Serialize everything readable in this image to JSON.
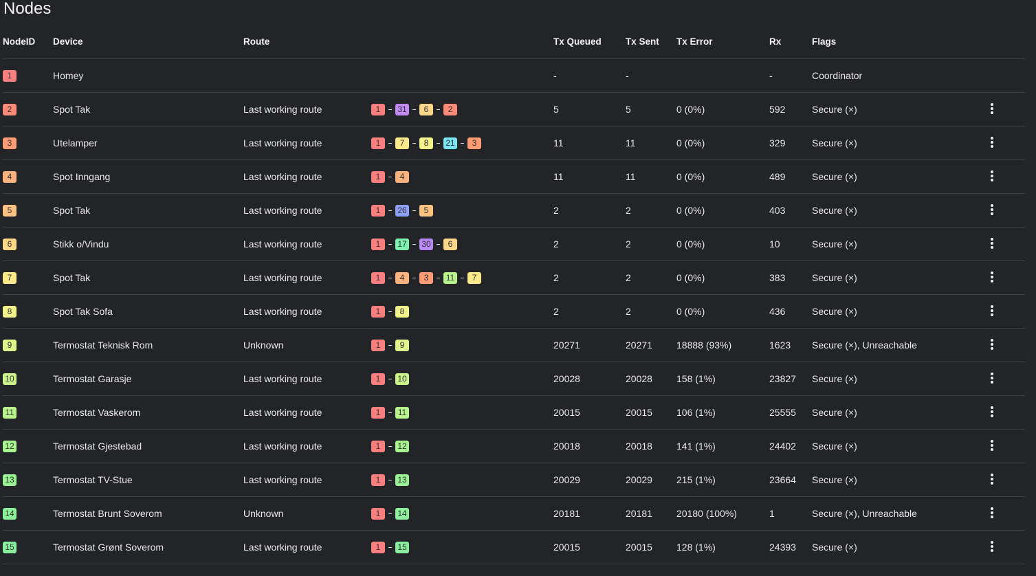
{
  "page": {
    "title": "Nodes"
  },
  "columns": {
    "node_id": "NodeID",
    "device": "Device",
    "route": "Route",
    "tx_queued": "Tx Queued",
    "tx_sent": "Tx Sent",
    "tx_error": "Tx Error",
    "rx": "Rx",
    "flags": "Flags"
  },
  "badge_colors": {
    "1": "#fa8080",
    "2": "#fb8a78",
    "3": "#fc9b74",
    "4": "#fcb27c",
    "5": "#fdc281",
    "6": "#fdd688",
    "7": "#fce98a",
    "8": "#f3f38b",
    "9": "#e1f48b",
    "10": "#cbf48b",
    "11": "#b8f48b",
    "12": "#a8f48e",
    "13": "#98f294",
    "14": "#8df09a",
    "15": "#88ee9e",
    "17": "#7cf1b2",
    "21": "#7ae6f2",
    "26": "#8fa0fa",
    "30": "#b88af7",
    "31": "#c489f5"
  },
  "rows": [
    {
      "id": "1",
      "device": "Homey",
      "route": "",
      "hops": [],
      "tx_queued": "-",
      "tx_sent": "-",
      "tx_error": "",
      "rx": "-",
      "flags": "Coordinator",
      "menu": false
    },
    {
      "id": "2",
      "device": "Spot Tak",
      "route": "Last working route",
      "hops": [
        "1",
        "31",
        "6",
        "2"
      ],
      "tx_queued": "5",
      "tx_sent": "5",
      "tx_error": "0 (0%)",
      "rx": "592",
      "flags": "Secure (×)",
      "menu": true
    },
    {
      "id": "3",
      "device": "Utelamper",
      "route": "Last working route",
      "hops": [
        "1",
        "7",
        "8",
        "21",
        "3"
      ],
      "tx_queued": "11",
      "tx_sent": "11",
      "tx_error": "0 (0%)",
      "rx": "329",
      "flags": "Secure (×)",
      "menu": true
    },
    {
      "id": "4",
      "device": "Spot Inngang",
      "route": "Last working route",
      "hops": [
        "1",
        "4"
      ],
      "tx_queued": "11",
      "tx_sent": "11",
      "tx_error": "0 (0%)",
      "rx": "489",
      "flags": "Secure (×)",
      "menu": true
    },
    {
      "id": "5",
      "device": "Spot Tak",
      "route": "Last working route",
      "hops": [
        "1",
        "26",
        "5"
      ],
      "tx_queued": "2",
      "tx_sent": "2",
      "tx_error": "0 (0%)",
      "rx": "403",
      "flags": "Secure (×)",
      "menu": true
    },
    {
      "id": "6",
      "device": "Stikk o/Vindu",
      "route": "Last working route",
      "hops": [
        "1",
        "17",
        "30",
        "6"
      ],
      "tx_queued": "2",
      "tx_sent": "2",
      "tx_error": "0 (0%)",
      "rx": "10",
      "flags": "Secure (×)",
      "menu": true
    },
    {
      "id": "7",
      "device": "Spot Tak",
      "route": "Last working route",
      "hops": [
        "1",
        "4",
        "3",
        "11",
        "7"
      ],
      "tx_queued": "2",
      "tx_sent": "2",
      "tx_error": "0 (0%)",
      "rx": "383",
      "flags": "Secure (×)",
      "menu": true
    },
    {
      "id": "8",
      "device": "Spot Tak Sofa",
      "route": "Last working route",
      "hops": [
        "1",
        "8"
      ],
      "tx_queued": "2",
      "tx_sent": "2",
      "tx_error": "0 (0%)",
      "rx": "436",
      "flags": "Secure (×)",
      "menu": true
    },
    {
      "id": "9",
      "device": "Termostat Teknisk Rom",
      "route": "Unknown",
      "hops": [
        "1",
        "9"
      ],
      "tx_queued": "20271",
      "tx_sent": "20271",
      "tx_error": "18888 (93%)",
      "rx": "1623",
      "flags": "Secure (×), Unreachable",
      "menu": true
    },
    {
      "id": "10",
      "device": "Termostat Garasje",
      "route": "Last working route",
      "hops": [
        "1",
        "10"
      ],
      "tx_queued": "20028",
      "tx_sent": "20028",
      "tx_error": "158 (1%)",
      "rx": "23827",
      "flags": "Secure (×)",
      "menu": true
    },
    {
      "id": "11",
      "device": "Termostat Vaskerom",
      "route": "Last working route",
      "hops": [
        "1",
        "11"
      ],
      "tx_queued": "20015",
      "tx_sent": "20015",
      "tx_error": "106 (1%)",
      "rx": "25555",
      "flags": "Secure (×)",
      "menu": true
    },
    {
      "id": "12",
      "device": "Termostat Gjestebad",
      "route": "Last working route",
      "hops": [
        "1",
        "12"
      ],
      "tx_queued": "20018",
      "tx_sent": "20018",
      "tx_error": "141 (1%)",
      "rx": "24402",
      "flags": "Secure (×)",
      "menu": true
    },
    {
      "id": "13",
      "device": "Termostat TV-Stue",
      "route": "Last working route",
      "hops": [
        "1",
        "13"
      ],
      "tx_queued": "20029",
      "tx_sent": "20029",
      "tx_error": "215 (1%)",
      "rx": "23664",
      "flags": "Secure (×)",
      "menu": true
    },
    {
      "id": "14",
      "device": "Termostat Brunt Soverom",
      "route": "Unknown",
      "hops": [
        "1",
        "14"
      ],
      "tx_queued": "20181",
      "tx_sent": "20181",
      "tx_error": "20180 (100%)",
      "rx": "1",
      "flags": "Secure (×), Unreachable",
      "menu": true
    },
    {
      "id": "15",
      "device": "Termostat Grønt Soverom",
      "route": "Last working route",
      "hops": [
        "1",
        "15"
      ],
      "tx_queued": "20015",
      "tx_sent": "20015",
      "tx_error": "128 (1%)",
      "rx": "24393",
      "flags": "Secure (×)",
      "menu": true
    }
  ]
}
